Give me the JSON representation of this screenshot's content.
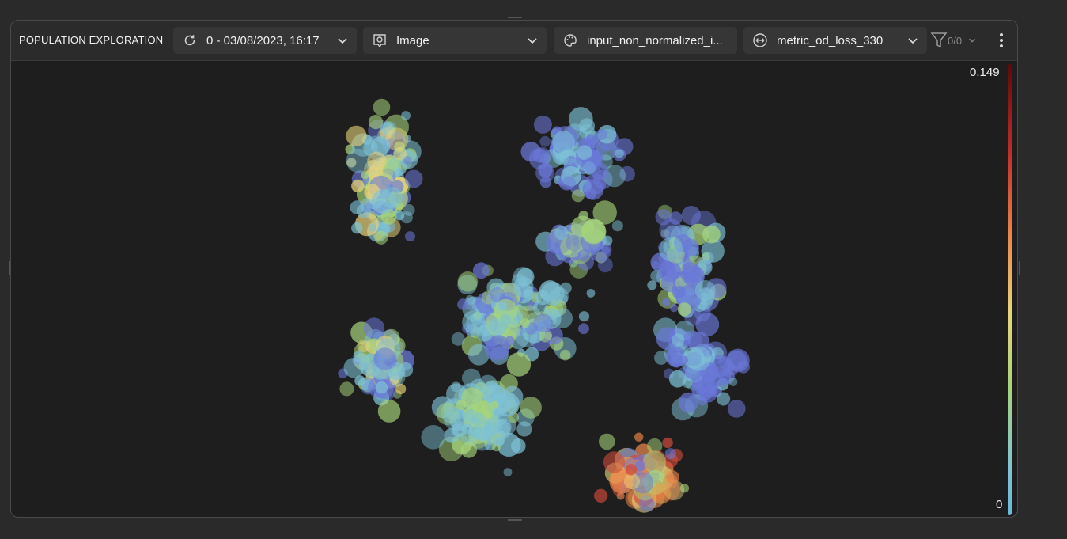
{
  "panel": {
    "title": "POPULATION EXPLORATION",
    "controls": {
      "version": {
        "label": "0 - 03/08/2023, 16:17",
        "icon": "refresh-icon"
      },
      "visualization": {
        "label": "Image",
        "icon": "image-settings-icon"
      },
      "color_by": {
        "label": "input_non_normalized_i...",
        "icon": "palette-icon"
      },
      "size_by": {
        "label": "metric_od_loss_330",
        "icon": "resize-icon"
      }
    },
    "filter": {
      "count": "0/0",
      "icon": "filter-icon"
    }
  },
  "colorbar": {
    "max_label": "0.149",
    "min_label": "0"
  },
  "chart_data": {
    "type": "scatter",
    "title": "",
    "xlabel": "",
    "ylabel": "",
    "color_scale": {
      "min": 0,
      "max": 0.149,
      "colors": [
        "#6ab8d8",
        "#a6d47a",
        "#e8d47a",
        "#e9864a",
        "#c0302a",
        "#5a0a0a"
      ]
    },
    "cluster_colors": {
      "low": "#6a78d8",
      "mid": "#7ec2d6",
      "green": "#a6d47a",
      "high": "#e8a04a"
    }
  }
}
